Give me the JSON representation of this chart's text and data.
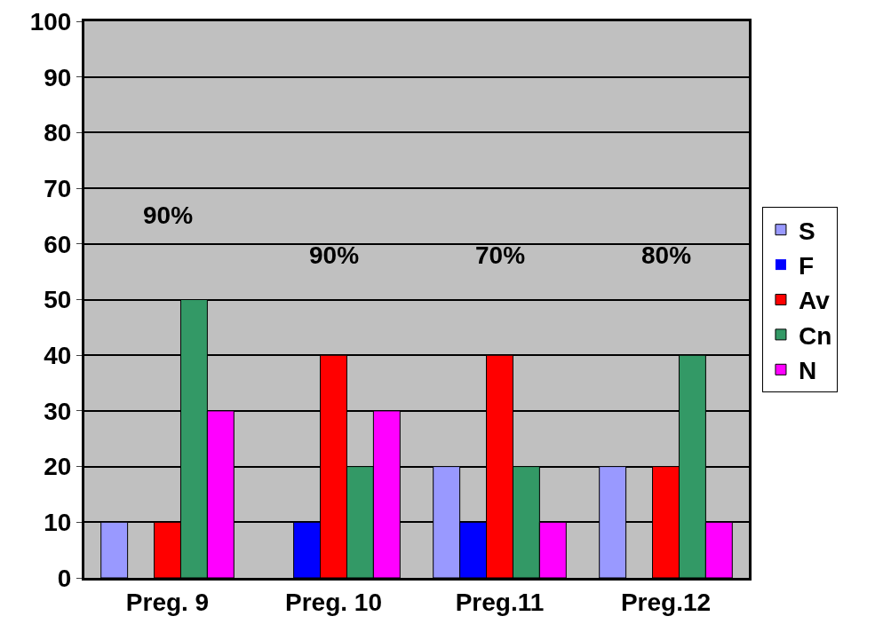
{
  "chart_data": {
    "type": "bar",
    "categories": [
      "Preg. 9",
      "Preg. 10",
      "Preg.11",
      "Preg.12"
    ],
    "series": [
      {
        "name": "S",
        "color": "#9999ff",
        "values": [
          10,
          0,
          20,
          20
        ]
      },
      {
        "name": "F",
        "color": "#0000ff",
        "values": [
          0,
          10,
          10,
          0
        ]
      },
      {
        "name": "Av",
        "color": "#ff0000",
        "values": [
          10,
          40,
          40,
          20
        ]
      },
      {
        "name": "Cn",
        "color": "#339966",
        "values": [
          50,
          20,
          20,
          40
        ]
      },
      {
        "name": "N",
        "color": "#ff00ff",
        "values": [
          30,
          30,
          10,
          10
        ]
      }
    ],
    "ylim": [
      0,
      100
    ],
    "yticks": [
      0,
      10,
      20,
      30,
      40,
      50,
      60,
      70,
      80,
      90,
      100
    ],
    "grid": "y",
    "legend": "right",
    "annotations": [
      "90%",
      "90%",
      "70%",
      "80%"
    ]
  }
}
